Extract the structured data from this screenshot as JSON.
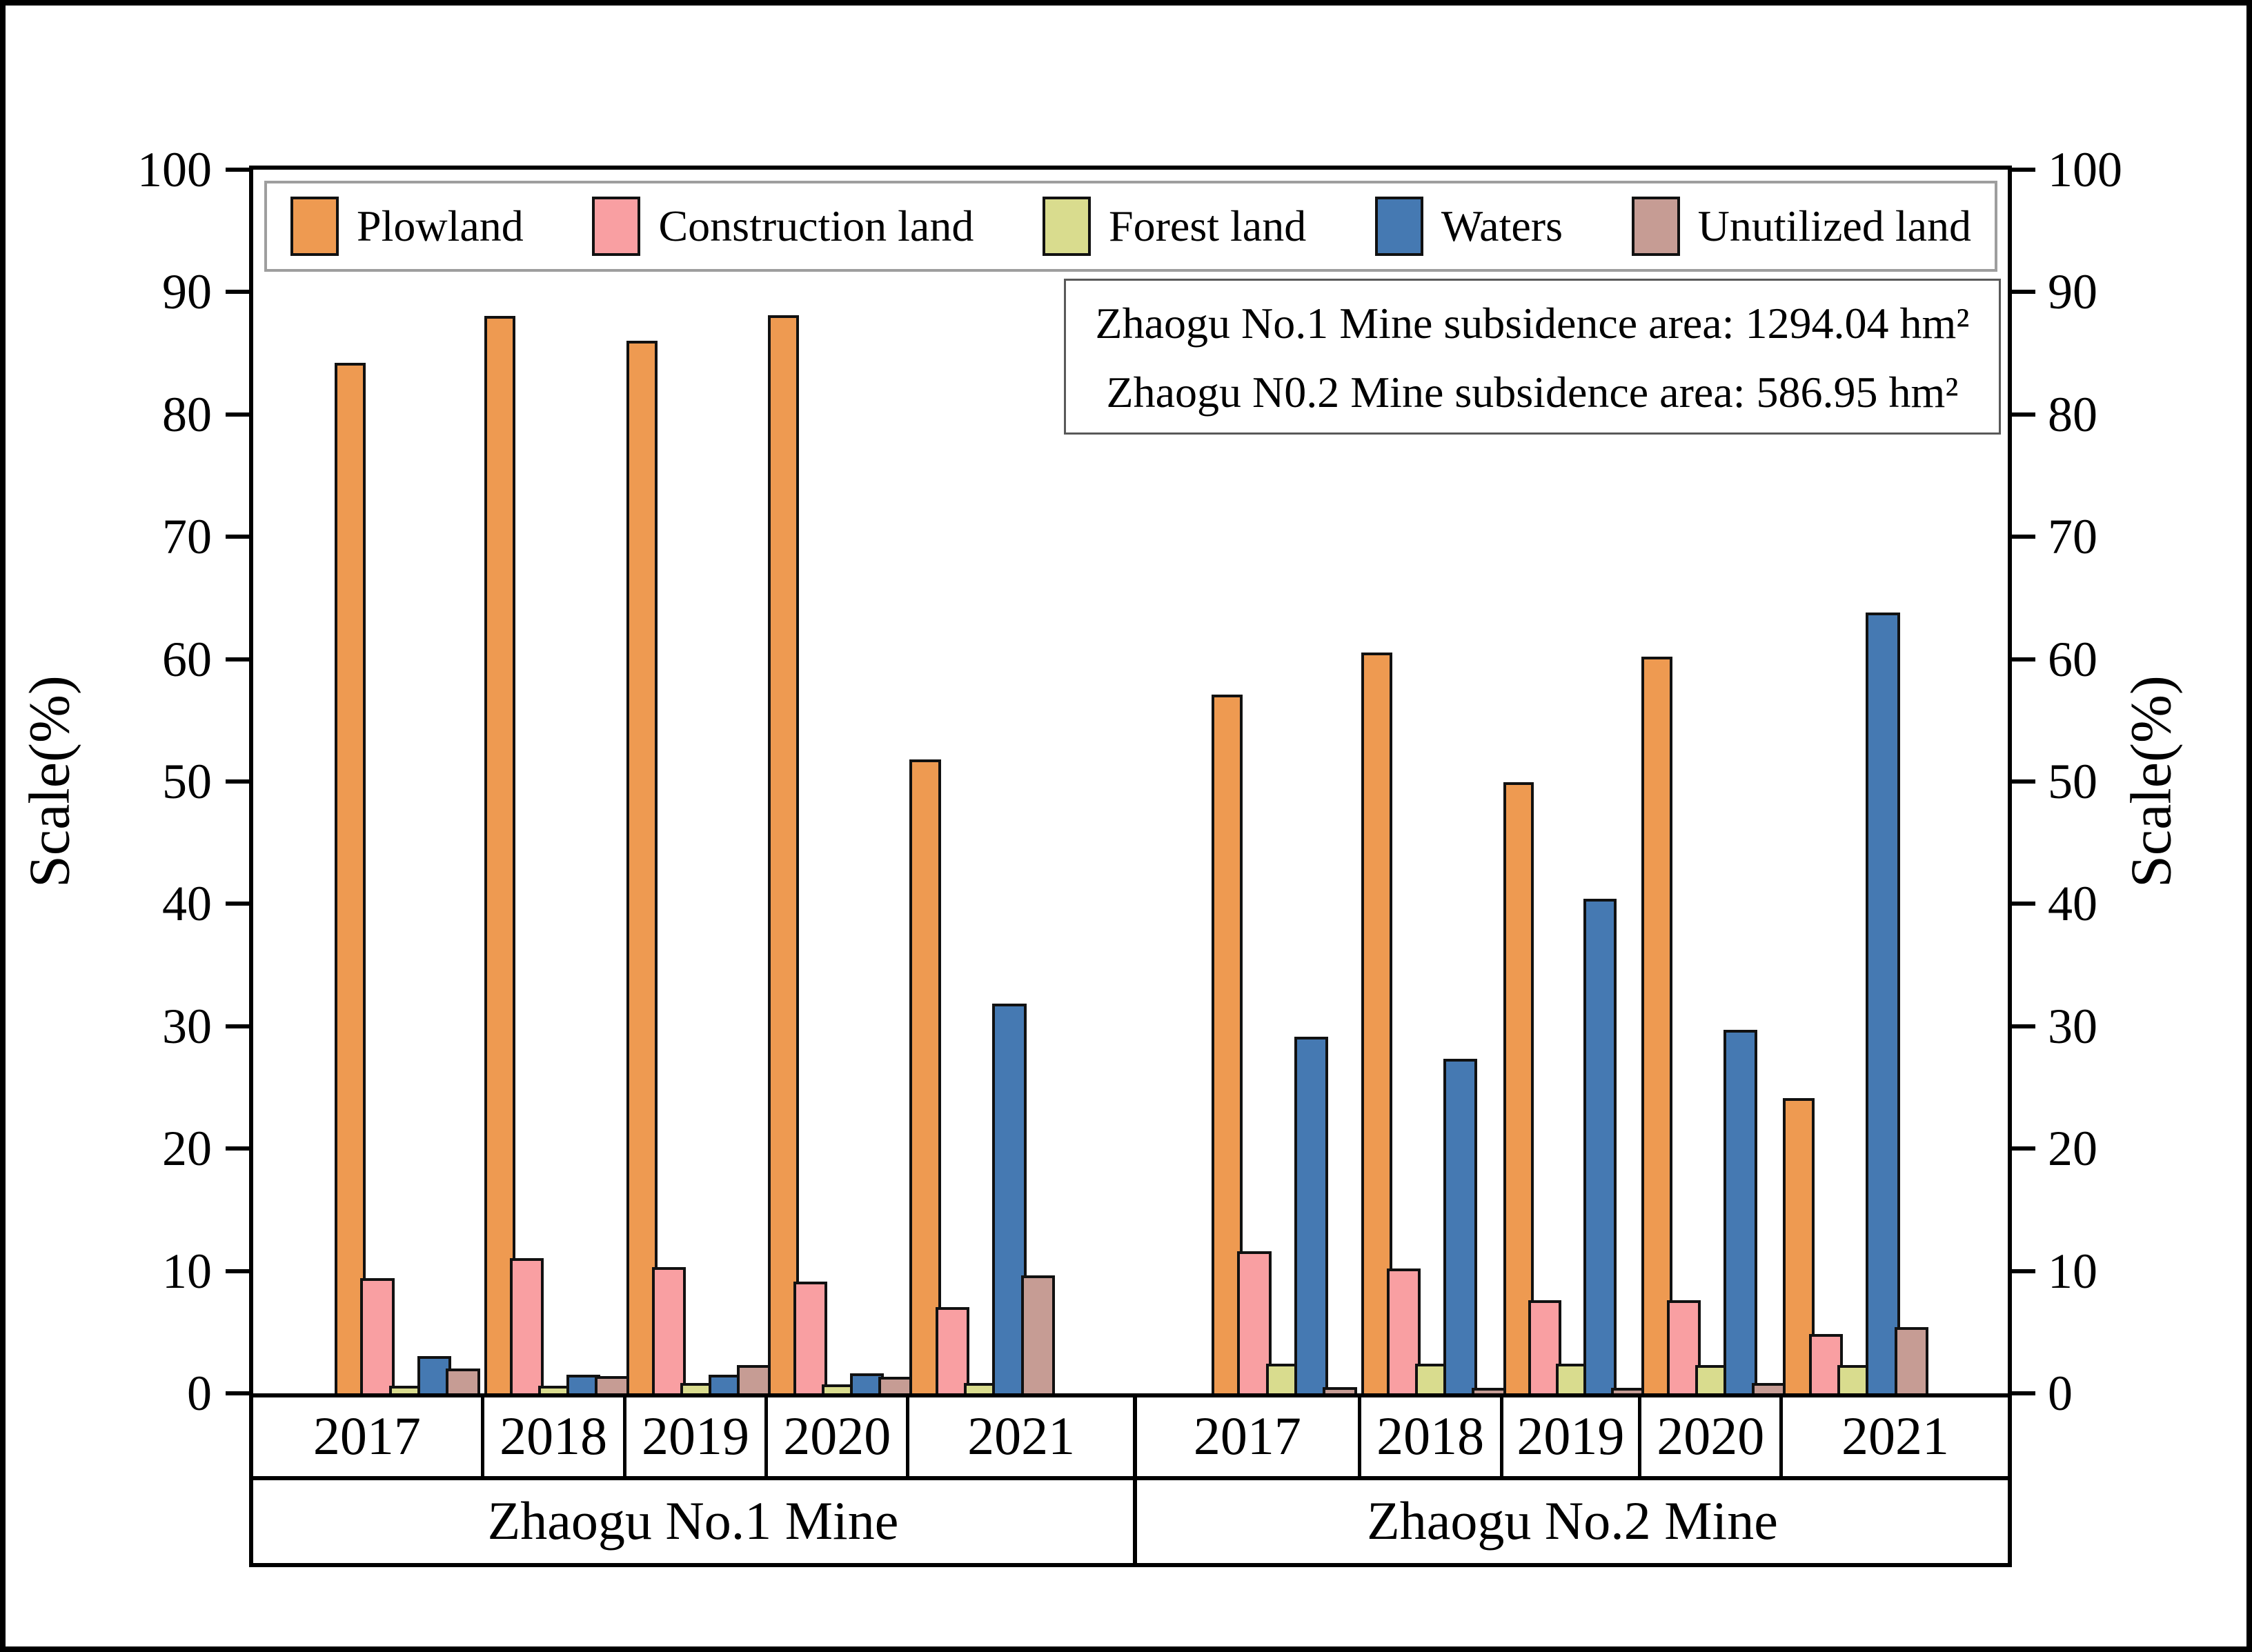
{
  "page": {
    "background": "#ffffff",
    "frame_color": "#000000"
  },
  "chart_data": {
    "type": "bar",
    "title": "",
    "ylabel_left": "Scale(%)",
    "ylabel_right": "Scale(%)",
    "ylim": [
      0,
      100
    ],
    "yticks": [
      0,
      10,
      20,
      30,
      40,
      50,
      60,
      70,
      80,
      90,
      100
    ],
    "grid": false,
    "legend_position": "top-inside",
    "bar_border_color": "#111111",
    "series": [
      {
        "name": "Plowland",
        "color": "#EE9A51"
      },
      {
        "name": "Construction land",
        "color": "#F99FA2"
      },
      {
        "name": "Forest land",
        "color": "#D9DC8E"
      },
      {
        "name": "Waters",
        "color": "#4579B2"
      },
      {
        "name": "Unutilized land",
        "color": "#C69C94"
      }
    ],
    "groups": [
      {
        "mine": "Zhaogu No.1 Mine",
        "years": [
          {
            "label": "2017",
            "values": [
              84.0,
              9.2,
              0.4,
              2.8,
              1.8
            ]
          },
          {
            "label": "2018",
            "values": [
              87.8,
              10.8,
              0.4,
              1.3,
              1.2
            ]
          },
          {
            "label": "2019",
            "values": [
              85.8,
              10.1,
              0.6,
              1.3,
              2.1
            ]
          },
          {
            "label": "2020",
            "values": [
              87.9,
              8.9,
              0.5,
              1.4,
              1.1
            ]
          },
          {
            "label": "2021",
            "values": [
              51.6,
              6.8,
              0.6,
              31.6,
              9.4
            ]
          }
        ]
      },
      {
        "mine": "Zhaogu No.2 Mine",
        "years": [
          {
            "label": "2017",
            "values": [
              56.9,
              11.4,
              2.2,
              28.9,
              0.3
            ]
          },
          {
            "label": "2018",
            "values": [
              60.3,
              10.0,
              2.2,
              27.1,
              0.2
            ]
          },
          {
            "label": "2019",
            "values": [
              49.7,
              7.4,
              2.2,
              40.2,
              0.2
            ]
          },
          {
            "label": "2020",
            "values": [
              60.0,
              7.4,
              2.1,
              29.5,
              0.6
            ]
          },
          {
            "label": "2021",
            "values": [
              23.9,
              4.6,
              2.1,
              63.6,
              5.2
            ]
          }
        ]
      }
    ],
    "annotation_box": {
      "lines": [
        "Zhaogu No.1 Mine subsidence area: 1294.04 hm²",
        "Zhaogu N0.2 Mine subsidence area: 586.95 hm²"
      ]
    }
  }
}
